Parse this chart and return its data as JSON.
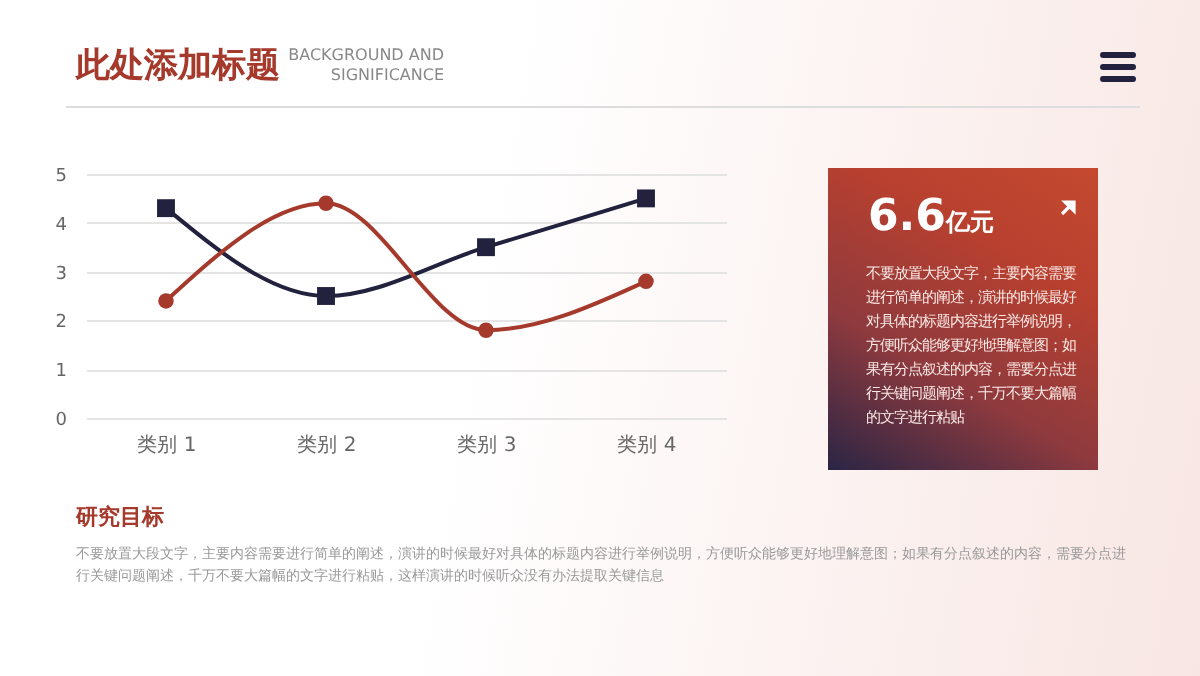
{
  "chart_data": {
    "type": "line",
    "title": "此处添加标题",
    "subtitle": "BACKGROUND AND SIGNIFICANCE",
    "categories": [
      "类别 1",
      "类别 2",
      "类别 3",
      "类别 4"
    ],
    "series": [
      {
        "color": "#22223f",
        "marker": "square",
        "values": [
          4.3,
          2.5,
          3.5,
          4.5
        ]
      },
      {
        "color": "#a5392b",
        "marker": "circle",
        "values": [
          2.4,
          4.4,
          1.8,
          2.8
        ]
      }
    ],
    "ylim": [
      0,
      5
    ],
    "yticks": [
      0,
      1,
      2,
      3,
      4,
      5
    ],
    "grid": "y",
    "line_style": "solid",
    "annotations": [
      "6.6亿元",
      "不要放置大段文字，主要内容需要进行简单的阐述，演讲的时候最好对具体的标题内容进行举例说明，方便听众能够更好地理解意图；如果有分点叙述的内容，需要分点进行关键问题阐述，千万不要大篇幅的文字进行粘贴",
      "研究目标",
      "不要放置大段文字，主要内容需要进行简单的阐述，演讲的时候最好对具体的标题内容进行举例说明，方便听众能够更好地理解意图；如果有分点叙述的内容，需要分点进行关键问题阐述，千万不要大篇幅的文字进行粘贴，这样演讲的时候听众没有办法提取关键信息"
    ]
  }
}
